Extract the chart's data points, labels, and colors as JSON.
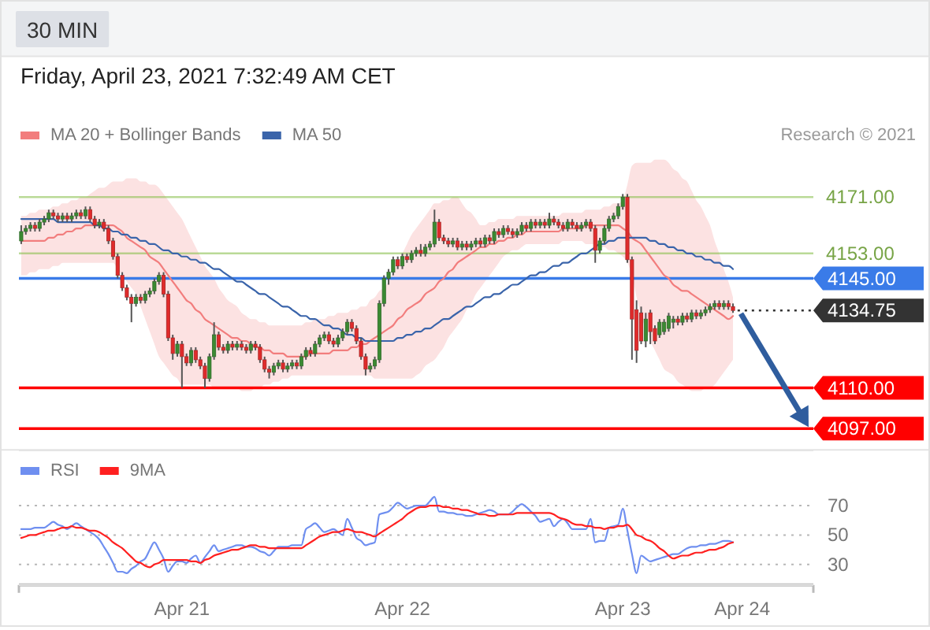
{
  "chart_data": [
    {
      "type": "candlestick",
      "title": "30 MIN",
      "subtitle": "Friday, April 23, 2021 7:32:49 AM CET",
      "annotations": [
        "Research © 2021"
      ],
      "legend": "top left",
      "tick_labels": "x",
      "ylim": [
        4090,
        4216
      ],
      "categories": [
        null,
        null,
        null,
        null,
        null,
        null,
        null,
        null,
        null,
        null,
        null,
        null,
        null,
        null,
        null,
        null,
        null,
        null,
        null,
        null,
        null,
        null,
        null,
        null,
        null,
        null,
        null,
        null,
        null,
        null,
        null,
        null,
        null,
        null,
        null,
        "Apr 21",
        null,
        null,
        null,
        null,
        null,
        null,
        null,
        null,
        null,
        null,
        null,
        null,
        null,
        null,
        null,
        null,
        null,
        null,
        null,
        null,
        null,
        null,
        null,
        null,
        null,
        null,
        null,
        null,
        null,
        null,
        null,
        null,
        null,
        null,
        null,
        null,
        null,
        null,
        null,
        null,
        null,
        null,
        null,
        null,
        null,
        null,
        null,
        "Apr 22",
        null,
        null,
        null,
        null,
        null,
        null,
        null,
        null,
        null,
        null,
        null,
        null,
        null,
        null,
        null,
        null,
        null,
        null,
        null,
        null,
        null,
        null,
        null,
        null,
        null,
        null,
        null,
        null,
        null,
        null,
        null,
        null,
        null,
        null,
        null,
        null,
        null,
        null,
        null,
        null,
        null,
        null,
        null,
        null,
        null,
        null,
        null,
        "Apr 23",
        null,
        null,
        null,
        null,
        null,
        null,
        null,
        null,
        null,
        null,
        null,
        null,
        null,
        null,
        null,
        null,
        null,
        null,
        null,
        null,
        null,
        null,
        null,
        null,
        null,
        "Apr 24",
        null,
        null,
        null,
        null,
        null,
        null,
        null,
        null,
        null,
        null,
        null,
        null,
        null,
        null,
        null
      ],
      "ohlc": [
        [
          4157,
          4162,
          4156,
          4160
        ],
        [
          4160,
          4162,
          4159,
          4161
        ],
        [
          4161,
          4163,
          4160,
          4162
        ],
        [
          4162,
          4163,
          4160,
          4161
        ],
        [
          4161,
          4164,
          4160,
          4163
        ],
        [
          4163,
          4165,
          4162,
          4164
        ],
        [
          4164,
          4167,
          4163,
          4166
        ],
        [
          4166,
          4167,
          4164,
          4165
        ],
        [
          4165,
          4166,
          4163,
          4164
        ],
        [
          4164,
          4166,
          4163,
          4165
        ],
        [
          4165,
          4166,
          4163,
          4164
        ],
        [
          4164,
          4166,
          4163,
          4165
        ],
        [
          4165,
          4167,
          4164,
          4166
        ],
        [
          4166,
          4167,
          4164,
          4165
        ],
        [
          4165,
          4168,
          4164,
          4167
        ],
        [
          4167,
          4168,
          4163,
          4164
        ],
        [
          4164,
          4165,
          4161,
          4162
        ],
        [
          4162,
          4164,
          4161,
          4163
        ],
        [
          4163,
          4164,
          4160,
          4161
        ],
        [
          4161,
          4162,
          4156,
          4157
        ],
        [
          4157,
          4158,
          4151,
          4152
        ],
        [
          4152,
          4153,
          4145,
          4146
        ],
        [
          4146,
          4147,
          4141,
          4142
        ],
        [
          4142,
          4143,
          4138,
          4139
        ],
        [
          4139,
          4140,
          4131,
          4137
        ],
        [
          4137,
          4140,
          4136,
          4139
        ],
        [
          4139,
          4140,
          4137,
          4138
        ],
        [
          4138,
          4141,
          4137,
          4140
        ],
        [
          4140,
          4142,
          4139,
          4141
        ],
        [
          4141,
          4145,
          4140,
          4144
        ],
        [
          4144,
          4147,
          4143,
          4146
        ],
        [
          4146,
          4147,
          4139,
          4140
        ],
        [
          4140,
          4141,
          4125,
          4126
        ],
        [
          4126,
          4127,
          4119,
          4121
        ],
        [
          4121,
          4125,
          4120,
          4124
        ],
        [
          4124,
          4125,
          4110,
          4120
        ],
        [
          4120,
          4121,
          4117,
          4118
        ],
        [
          4118,
          4123,
          4117,
          4122
        ],
        [
          4122,
          4123,
          4118,
          4119
        ],
        [
          4119,
          4120,
          4116,
          4117
        ],
        [
          4117,
          4118,
          4110,
          4113
        ],
        [
          4113,
          4121,
          4112,
          4120
        ],
        [
          4120,
          4131,
          4119,
          4127
        ],
        [
          4127,
          4128,
          4122,
          4123
        ],
        [
          4123,
          4124,
          4121,
          4122
        ],
        [
          4122,
          4125,
          4121,
          4124
        ],
        [
          4124,
          4125,
          4122,
          4123
        ],
        [
          4123,
          4125,
          4122,
          4124
        ],
        [
          4124,
          4125,
          4122,
          4123
        ],
        [
          4123,
          4124,
          4121,
          4122
        ],
        [
          4122,
          4125,
          4121,
          4124
        ],
        [
          4124,
          4125,
          4122,
          4123
        ],
        [
          4123,
          4124,
          4118,
          4119
        ],
        [
          4119,
          4120,
          4115,
          4116
        ],
        [
          4116,
          4117,
          4113,
          4115
        ],
        [
          4115,
          4118,
          4114,
          4117
        ],
        [
          4117,
          4119,
          4116,
          4118
        ],
        [
          4118,
          4119,
          4115,
          4116
        ],
        [
          4116,
          4118,
          4115,
          4117
        ],
        [
          4117,
          4119,
          4116,
          4118
        ],
        [
          4118,
          4119,
          4116,
          4117
        ],
        [
          4117,
          4121,
          4116,
          4120
        ],
        [
          4120,
          4123,
          4119,
          4122
        ],
        [
          4122,
          4123,
          4120,
          4121
        ],
        [
          4121,
          4125,
          4120,
          4124
        ],
        [
          4124,
          4127,
          4123,
          4126
        ],
        [
          4126,
          4128,
          4125,
          4127
        ],
        [
          4127,
          4128,
          4124,
          4125
        ],
        [
          4125,
          4126,
          4123,
          4124
        ],
        [
          4124,
          4127,
          4123,
          4126
        ],
        [
          4126,
          4129,
          4125,
          4128
        ],
        [
          4128,
          4132,
          4127,
          4131
        ],
        [
          4131,
          4132,
          4128,
          4129
        ],
        [
          4129,
          4130,
          4124,
          4125
        ],
        [
          4125,
          4126,
          4119,
          4120
        ],
        [
          4120,
          4121,
          4114,
          4116
        ],
        [
          4116,
          4118,
          4115,
          4117
        ],
        [
          4117,
          4120,
          4116,
          4119
        ],
        [
          4119,
          4138,
          4118,
          4137
        ],
        [
          4137,
          4146,
          4136,
          4145
        ],
        [
          4145,
          4148,
          4143,
          4147
        ],
        [
          4147,
          4152,
          4146,
          4151
        ],
        [
          4151,
          4152,
          4148,
          4149
        ],
        [
          4149,
          4153,
          4148,
          4152
        ],
        [
          4152,
          4153,
          4150,
          4151
        ],
        [
          4151,
          4154,
          4150,
          4153
        ],
        [
          4153,
          4155,
          4152,
          4154
        ],
        [
          4154,
          4156,
          4152,
          4153
        ],
        [
          4153,
          4156,
          4152,
          4155
        ],
        [
          4155,
          4157,
          4154,
          4156
        ],
        [
          4156,
          4167,
          4155,
          4163
        ],
        [
          4163,
          4164,
          4157,
          4158
        ],
        [
          4158,
          4159,
          4156,
          4157
        ],
        [
          4157,
          4158,
          4155,
          4156
        ],
        [
          4156,
          4158,
          4155,
          4157
        ],
        [
          4157,
          4158,
          4154,
          4155
        ],
        [
          4155,
          4157,
          4154,
          4156
        ],
        [
          4156,
          4157,
          4154,
          4155
        ],
        [
          4155,
          4157,
          4154,
          4156
        ],
        [
          4156,
          4158,
          4155,
          4157
        ],
        [
          4157,
          4158,
          4155,
          4156
        ],
        [
          4156,
          4159,
          4155,
          4158
        ],
        [
          4158,
          4159,
          4156,
          4157
        ],
        [
          4157,
          4161,
          4156,
          4160
        ],
        [
          4160,
          4161,
          4158,
          4159
        ],
        [
          4159,
          4162,
          4158,
          4161
        ],
        [
          4161,
          4162,
          4159,
          4160
        ],
        [
          4160,
          4161,
          4158,
          4159
        ],
        [
          4159,
          4161,
          4158,
          4160
        ],
        [
          4160,
          4163,
          4159,
          4162
        ],
        [
          4162,
          4163,
          4160,
          4161
        ],
        [
          4161,
          4164,
          4160,
          4163
        ],
        [
          4163,
          4164,
          4161,
          4162
        ],
        [
          4162,
          4164,
          4161,
          4163
        ],
        [
          4163,
          4164,
          4161,
          4162
        ],
        [
          4162,
          4166,
          4161,
          4164
        ],
        [
          4164,
          4165,
          4162,
          4163
        ],
        [
          4163,
          4164,
          4161,
          4162
        ],
        [
          4162,
          4163,
          4160,
          4161
        ],
        [
          4161,
          4164,
          4160,
          4163
        ],
        [
          4163,
          4164,
          4161,
          4162
        ],
        [
          4162,
          4163,
          4160,
          4161
        ],
        [
          4161,
          4163,
          4160,
          4162
        ],
        [
          4162,
          4164,
          4161,
          4163
        ],
        [
          4163,
          4164,
          4160,
          4161
        ],
        [
          4161,
          4162,
          4150,
          4154
        ],
        [
          4154,
          4158,
          4153,
          4157
        ],
        [
          4157,
          4162,
          4156,
          4161
        ],
        [
          4161,
          4165,
          4160,
          4164
        ],
        [
          4164,
          4166,
          4163,
          4165
        ],
        [
          4165,
          4169,
          4164,
          4168
        ],
        [
          4168,
          4172,
          4167,
          4171
        ],
        [
          4171,
          4172,
          4150,
          4151
        ],
        [
          4151,
          4152,
          4119,
          4132
        ],
        [
          4135,
          4138,
          4118,
          4122
        ],
        [
          4134,
          4136,
          4124,
          4125
        ],
        [
          4125,
          4134,
          4123,
          4132
        ],
        [
          4134,
          4135,
          4124,
          4128
        ],
        [
          4129,
          4130,
          4124,
          4125
        ],
        [
          4127,
          4132,
          4126,
          4131
        ],
        [
          4128,
          4132,
          4127,
          4131
        ],
        [
          4129,
          4134,
          4128,
          4133
        ],
        [
          4131,
          4133,
          4129,
          4132
        ],
        [
          4132,
          4133,
          4130,
          4131
        ],
        [
          4131,
          4134,
          4130,
          4133
        ],
        [
          4133,
          4134,
          4131,
          4132
        ],
        [
          4132,
          4135,
          4131,
          4134
        ],
        [
          4134,
          4135,
          4132,
          4133
        ],
        [
          4133,
          4135,
          4132,
          4134
        ],
        [
          4134,
          4136,
          4133,
          4135
        ],
        [
          4135,
          4137,
          4134,
          4136
        ],
        [
          4136,
          4138,
          4135,
          4137
        ],
        [
          4137,
          4138,
          4135,
          4136
        ],
        [
          4136,
          4138,
          4135,
          4137
        ],
        [
          4137,
          4138,
          4135,
          4136
        ],
        [
          4136,
          4137,
          4134,
          4134.75
        ],
        null,
        null,
        null,
        null,
        null,
        null,
        null,
        null,
        null,
        null,
        null,
        null,
        null,
        null,
        null,
        null,
        null
      ],
      "series": [
        {
          "name": "MA 20 + Bollinger Bands",
          "type": "line",
          "color": "#f27d7d",
          "values": [
            4157,
            4157,
            4157,
            4157,
            4157,
            4157,
            4158,
            4158,
            4159,
            4159,
            4160,
            4160,
            4161,
            4161,
            4162,
            4162,
            4162,
            4162,
            4162,
            4162,
            4162,
            4161,
            4160,
            4158,
            4157,
            4156,
            4155,
            4154,
            4152,
            4151,
            4150,
            4148,
            4146,
            4144,
            4142,
            4140,
            4138,
            4137,
            4135,
            4134,
            4132,
            4131,
            4130,
            4129,
            4128,
            4127,
            4126,
            4126,
            4125,
            4125,
            4124,
            4123,
            4123,
            4122,
            4122,
            4121,
            4121,
            4121,
            4120,
            4120,
            4120,
            4120,
            4120,
            4121,
            4121,
            4121,
            4121,
            4121,
            4122,
            4122,
            4122,
            4122,
            4123,
            4123,
            4124,
            4124,
            4125,
            4126,
            4127,
            4128,
            4129,
            4130,
            4132,
            4133,
            4135,
            4136,
            4137,
            4138,
            4140,
            4141,
            4142,
            4144,
            4145,
            4147,
            4148,
            4150,
            4151,
            4152,
            4153,
            4154,
            4155,
            4155,
            4156,
            4156,
            4157,
            4157,
            4158,
            4158,
            4159,
            4159,
            4160,
            4160,
            4160,
            4160,
            4160,
            4160,
            4160,
            4160,
            4161,
            4161,
            4161,
            4161,
            4161,
            4162,
            4162,
            4162,
            4162,
            4162,
            4162,
            4162,
            4162,
            4161,
            4160,
            4158,
            4157,
            4156,
            4154,
            4152,
            4150,
            4148,
            4146,
            4145,
            4143,
            4142,
            4141,
            4141,
            4140,
            4139,
            4138,
            4137,
            4136,
            4135,
            4134,
            4133,
            4132,
            4133,
            null,
            null,
            null,
            null,
            null,
            null,
            null,
            null,
            null,
            null,
            null,
            null,
            null,
            null,
            null,
            null,
            null
          ],
          "lower": [
            4146,
            4146,
            4147,
            4147,
            4148,
            4148,
            4148,
            4149,
            4149,
            4150,
            4150,
            4150,
            4150,
            4150,
            4150,
            4150,
            4150,
            4150,
            4150,
            4150,
            4150,
            4148,
            4146,
            4144,
            4142,
            4140,
            4136,
            4132,
            4128,
            4124,
            4120,
            4118,
            4116,
            4114,
            4113,
            4111,
            4111,
            4111,
            4111,
            4111,
            4111,
            4111,
            4110,
            4110,
            4110,
            4110,
            4110,
            4110,
            4109,
            4109,
            4109,
            4110,
            4110,
            4111,
            4111,
            4112,
            4112,
            4113,
            4113,
            4114,
            4114,
            4114,
            4114,
            4114,
            4114,
            4114,
            4114,
            4114,
            4114,
            4114,
            4114,
            4114,
            4114,
            4114,
            4114,
            4114,
            4114,
            4113,
            4113,
            4113,
            4113,
            4113,
            4113,
            4113,
            4113,
            4113,
            4114,
            4115,
            4117,
            4118,
            4119,
            4121,
            4123,
            4126,
            4128,
            4130,
            4132,
            4135,
            4137,
            4140,
            4142,
            4144,
            4146,
            4148,
            4150,
            4152,
            4153,
            4154,
            4154,
            4155,
            4156,
            4156,
            4156,
            4156,
            4156,
            4156,
            4156,
            4156,
            4157,
            4157,
            4157,
            4157,
            4157,
            4156,
            4156,
            4156,
            4155,
            4155,
            4154,
            4154,
            4153,
            4152,
            4150,
            4146,
            4139,
            4133,
            4129,
            4125,
            4122,
            4119,
            4116,
            4115,
            4114,
            4112,
            4111,
            4110,
            4109,
            4109,
            4109,
            4110,
            4110,
            4111,
            4113,
            4115,
            4117,
            4119,
            null,
            null,
            null,
            null,
            null,
            null,
            null,
            null,
            null,
            null,
            null,
            null,
            null,
            null,
            null,
            null,
            null
          ],
          "upper": [
            4165,
            4165,
            4166,
            4166,
            4167,
            4167,
            4167,
            4168,
            4168,
            4169,
            4169,
            4170,
            4170,
            4171,
            4171,
            4172,
            4173,
            4174,
            4174,
            4175,
            4176,
            4176,
            4176,
            4177,
            4177,
            4177,
            4176,
            4176,
            4175,
            4175,
            4174,
            4172,
            4170,
            4168,
            4166,
            4164,
            4161,
            4158,
            4155,
            4152,
            4149,
            4147,
            4145,
            4142,
            4140,
            4138,
            4137,
            4136,
            4134,
            4133,
            4132,
            4132,
            4131,
            4131,
            4130,
            4130,
            4130,
            4130,
            4130,
            4130,
            4130,
            4130,
            4131,
            4131,
            4132,
            4132,
            4132,
            4133,
            4133,
            4134,
            4134,
            4134,
            4135,
            4135,
            4136,
            4136,
            4138,
            4139,
            4141,
            4142,
            4144,
            4147,
            4150,
            4153,
            4156,
            4159,
            4161,
            4163,
            4165,
            4167,
            4169,
            4169,
            4170,
            4170,
            4171,
            4171,
            4169,
            4167,
            4166,
            4164,
            4162,
            4162,
            4163,
            4163,
            4164,
            4164,
            4164,
            4164,
            4165,
            4165,
            4165,
            4165,
            4165,
            4165,
            4165,
            4165,
            4165,
            4165,
            4166,
            4166,
            4166,
            4166,
            4166,
            4167,
            4167,
            4167,
            4167,
            4168,
            4168,
            4169,
            4169,
            4170,
            4175,
            4181,
            4182,
            4182,
            4182,
            4182,
            4183,
            4183,
            4183,
            4182,
            4180,
            4179,
            4177,
            4176,
            4173,
            4170,
            4168,
            4165,
            4162,
            4157,
            4153,
            4148,
            4144,
            4139,
            null,
            null,
            null,
            null,
            null,
            null,
            null,
            null,
            null,
            null,
            null,
            null,
            null,
            null,
            null,
            null,
            null
          ]
        },
        {
          "name": "MA 50",
          "type": "line",
          "color": "#3a64aa",
          "values": [
            4164,
            4164,
            4164,
            4164,
            4164,
            4164,
            4164,
            4164,
            4163,
            4163,
            4163,
            4163,
            4163,
            4163,
            4163,
            4163,
            4162,
            4162,
            4161,
            4161,
            4160,
            4160,
            4159,
            4159,
            4158,
            4158,
            4157,
            4157,
            4156,
            4156,
            4155,
            4154,
            4154,
            4153,
            4153,
            4152,
            4152,
            4151,
            4151,
            4150,
            4150,
            4149,
            4148,
            4148,
            4147,
            4146,
            4145,
            4144,
            4144,
            4143,
            4142,
            4141,
            4140,
            4140,
            4139,
            4138,
            4137,
            4136,
            4136,
            4135,
            4134,
            4133,
            4133,
            4132,
            4132,
            4131,
            4130,
            4130,
            4129,
            4129,
            4128,
            4127,
            4127,
            4126,
            4126,
            4125,
            4125,
            4125,
            4125,
            4125,
            4125,
            4125,
            4126,
            4126,
            4127,
            4127,
            4128,
            4128,
            4129,
            4129,
            4130,
            4131,
            4132,
            4132,
            4133,
            4134,
            4135,
            4136,
            4136,
            4137,
            4138,
            4139,
            4139,
            4140,
            4140,
            4141,
            4142,
            4143,
            4143,
            4144,
            4145,
            4146,
            4146,
            4147,
            4147,
            4148,
            4149,
            4149,
            4150,
            4150,
            4151,
            4152,
            4153,
            4153,
            4154,
            4155,
            4156,
            4156,
            4157,
            4157,
            4158,
            4158,
            4158,
            4158,
            4158,
            4158,
            4158,
            4157,
            4157,
            4156,
            4156,
            4155,
            4155,
            4154,
            4154,
            4153,
            4153,
            4152,
            4152,
            4151,
            4151,
            4150,
            4150,
            4149,
            4149,
            4148,
            null,
            null,
            null,
            null,
            null,
            null,
            null,
            null,
            null,
            null,
            null,
            null,
            null,
            null,
            null,
            null,
            null
          ]
        }
      ],
      "ref_lines": [
        {
          "axis": "y",
          "value": 4171,
          "label": "4171.00",
          "color": "#8cc152"
        },
        {
          "axis": "y",
          "value": 4153,
          "label": "4153.00",
          "color": "#8cc152"
        },
        {
          "axis": "y",
          "value": 4145,
          "label": "4145.00",
          "color": "#3a7be8"
        },
        {
          "axis": "y",
          "value": 4134.75,
          "label": "4134.75",
          "color": "#333333",
          "line_style": "dotted"
        },
        {
          "axis": "y",
          "value": 4110,
          "label": "4110.00",
          "color": "#ff0000"
        },
        {
          "axis": "y",
          "value": 4097,
          "label": "4097.00",
          "color": "#ff0000"
        }
      ]
    },
    {
      "type": "line",
      "legend": "top left",
      "grid": "y",
      "tick_labels": "y",
      "ylim": [
        16,
        108
      ],
      "yticks": [
        30,
        50,
        70
      ],
      "categories": [
        null,
        null,
        null,
        null,
        null,
        null,
        null,
        null,
        null,
        null,
        null,
        null,
        null,
        null,
        null,
        null,
        null,
        null,
        null,
        null,
        null,
        null,
        null,
        null,
        null,
        null,
        null,
        null,
        null,
        null,
        null,
        null,
        null,
        null,
        null,
        null,
        null,
        null,
        null,
        null,
        null,
        null,
        null,
        null,
        null,
        null,
        null,
        null,
        null,
        null,
        null,
        null,
        null,
        null,
        null,
        null,
        null,
        null,
        null,
        null,
        null,
        null,
        null,
        null,
        null,
        null,
        null,
        null,
        null,
        null,
        null,
        null,
        null,
        null,
        null,
        null,
        null,
        null,
        null,
        null,
        null,
        null,
        null,
        null,
        null,
        null,
        null,
        null,
        null,
        null,
        null,
        null,
        null,
        null,
        null,
        null,
        null,
        null,
        null,
        null,
        null,
        null,
        null,
        null,
        null,
        null,
        null,
        null,
        null,
        null,
        null,
        null,
        null,
        null,
        null,
        null,
        null,
        null,
        null,
        null,
        null,
        null,
        null,
        null,
        null,
        null,
        null,
        null,
        null,
        null,
        null,
        null,
        null,
        null,
        null,
        null,
        null,
        null,
        null,
        null,
        null,
        null,
        null,
        null,
        null,
        null,
        null,
        null,
        null,
        null,
        null,
        null,
        null,
        null,
        null,
        null,
        null,
        null,
        null,
        null,
        null,
        null,
        null,
        null,
        null,
        null,
        null,
        null,
        null,
        null,
        null,
        null,
        null
      ],
      "series": [
        {
          "name": "RSI",
          "color": "#6f8ff0",
          "values": [
            54,
            54,
            54,
            55,
            55,
            55,
            57,
            59,
            57,
            56,
            54,
            56,
            58,
            56,
            54,
            52,
            50,
            47,
            42,
            37,
            31,
            25,
            25,
            24,
            27,
            29,
            32,
            34,
            40,
            45,
            40,
            34,
            25,
            29,
            32,
            32,
            31,
            34,
            36,
            31,
            35,
            39,
            43,
            39,
            40,
            41,
            42,
            43,
            43,
            42,
            42,
            41,
            39,
            38,
            36,
            39,
            42,
            42,
            42,
            43,
            43,
            43,
            54,
            56,
            58,
            55,
            52,
            53,
            54,
            52,
            50,
            61,
            55,
            48,
            46,
            43,
            44,
            45,
            64,
            65,
            66,
            69,
            72,
            70,
            68,
            69,
            70,
            70,
            70,
            73,
            76,
            66,
            66,
            65,
            65,
            64,
            64,
            63,
            63,
            64,
            65,
            66,
            67,
            66,
            64,
            64,
            64,
            66,
            69,
            71,
            69,
            66,
            63,
            59,
            60,
            61,
            56,
            59,
            61,
            58,
            54,
            54,
            54,
            54,
            61,
            45,
            46,
            46,
            55,
            56,
            57,
            68,
            53,
            37,
            24,
            36,
            34,
            32,
            33,
            34,
            35,
            36,
            37,
            37,
            39,
            41,
            42,
            42,
            43,
            43,
            44,
            44,
            45,
            46,
            46,
            45,
            null,
            null,
            null,
            null,
            null,
            null,
            null,
            null,
            null,
            null,
            null,
            null,
            null,
            null,
            null,
            null,
            null
          ]
        },
        {
          "name": "9MA",
          "color": "#ff2020",
          "values": [
            48,
            49,
            50,
            50,
            51,
            52,
            53,
            53,
            54,
            55,
            55,
            56,
            55,
            55,
            54,
            53,
            53,
            52,
            50,
            48,
            45,
            43,
            41,
            38,
            35,
            32,
            31,
            29,
            28,
            30,
            31,
            33,
            33,
            33,
            33,
            33,
            33,
            32,
            32,
            31,
            33,
            34,
            36,
            37,
            38,
            39,
            40,
            40,
            41,
            42,
            43,
            43,
            42,
            42,
            41,
            41,
            41,
            41,
            41,
            41,
            41,
            41,
            43,
            45,
            47,
            49,
            50,
            51,
            52,
            52,
            53,
            54,
            53,
            52,
            52,
            51,
            50,
            49,
            51,
            53,
            55,
            57,
            59,
            61,
            64,
            66,
            68,
            69,
            69,
            70,
            70,
            70,
            69,
            69,
            68,
            68,
            67,
            67,
            66,
            65,
            64,
            64,
            63,
            63,
            64,
            64,
            64,
            64,
            65,
            65,
            65,
            65,
            65,
            65,
            65,
            65,
            64,
            62,
            61,
            60,
            58,
            57,
            57,
            56,
            56,
            55,
            55,
            54,
            55,
            55,
            56,
            56,
            57,
            54,
            50,
            49,
            47,
            46,
            44,
            41,
            39,
            36,
            34,
            35,
            36,
            36,
            37,
            38,
            38,
            39,
            40,
            40,
            41,
            42,
            44,
            45,
            null,
            null,
            null,
            null,
            null,
            null,
            null,
            null,
            null,
            null,
            null,
            null,
            null,
            null,
            null,
            null,
            null
          ]
        }
      ]
    }
  ]
}
